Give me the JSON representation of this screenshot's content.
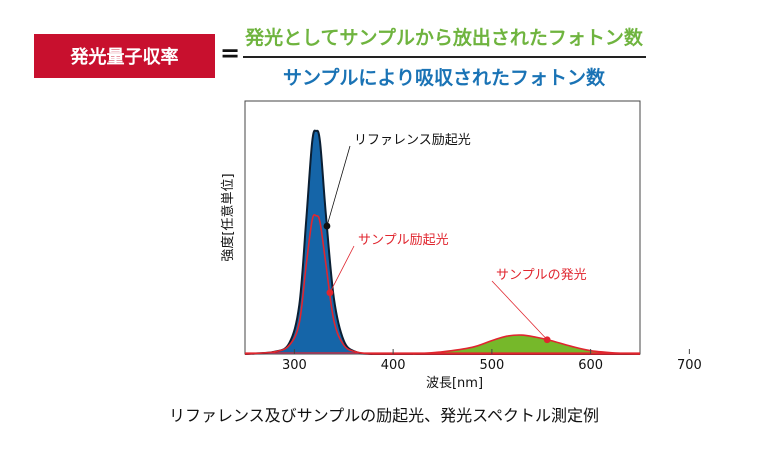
{
  "formula": {
    "label": "発光量子収率",
    "equals": "=",
    "numerator": "発光としてサンプルから放出されたフォトン数",
    "denominator": "サンプルにより吸収されたフォトン数"
  },
  "caption": "リファレンス及びサンプルの励起光、発光スペクトル測定例",
  "colors": {
    "accent_red": "#c8102e",
    "numerator_green": "#6fb43f",
    "denominator_blue": "#1a73b5",
    "reference_fill": "#1565a8",
    "sample_line": "#e0262f",
    "emission_fill": "#76b82a"
  },
  "chart_data": {
    "type": "area",
    "xlabel": "波長[nm]",
    "ylabel": "強度[任意単位]",
    "xlim": [
      250,
      650
    ],
    "ylim": [
      0,
      1
    ],
    "x_ticks": [
      300,
      400,
      500,
      600,
      700
    ],
    "grid": false,
    "series": [
      {
        "name": "リファレンス励起光",
        "x": [
          250,
          280,
          295,
          305,
          312,
          318,
          322,
          326,
          332,
          340,
          350,
          362,
          380,
          420,
          650
        ],
        "y": [
          0.0,
          0.01,
          0.05,
          0.22,
          0.6,
          0.95,
          1.0,
          0.95,
          0.62,
          0.25,
          0.06,
          0.01,
          0.0,
          0.0,
          0.0
        ]
      },
      {
        "name": "サンプル励起光",
        "x": [
          250,
          280,
          295,
          305,
          312,
          318,
          322,
          326,
          332,
          340,
          350,
          362,
          380,
          420,
          650
        ],
        "y": [
          0.0,
          0.01,
          0.04,
          0.14,
          0.4,
          0.6,
          0.62,
          0.59,
          0.4,
          0.15,
          0.04,
          0.01,
          0.0,
          0.0,
          0.0
        ]
      },
      {
        "name": "サンプルの発光",
        "x": [
          420,
          450,
          480,
          500,
          515,
          530,
          545,
          560,
          580,
          600,
          630,
          650
        ],
        "y": [
          0.0,
          0.01,
          0.03,
          0.06,
          0.08,
          0.085,
          0.075,
          0.06,
          0.035,
          0.015,
          0.003,
          0.0
        ]
      }
    ],
    "annotations": [
      {
        "text": "リファレンス励起光",
        "target_series": 0,
        "x": 333
      },
      {
        "text": "サンプル励起光",
        "target_series": 1,
        "x": 336
      },
      {
        "text": "サンプルの発光",
        "target_series": 2,
        "x": 556
      }
    ]
  }
}
